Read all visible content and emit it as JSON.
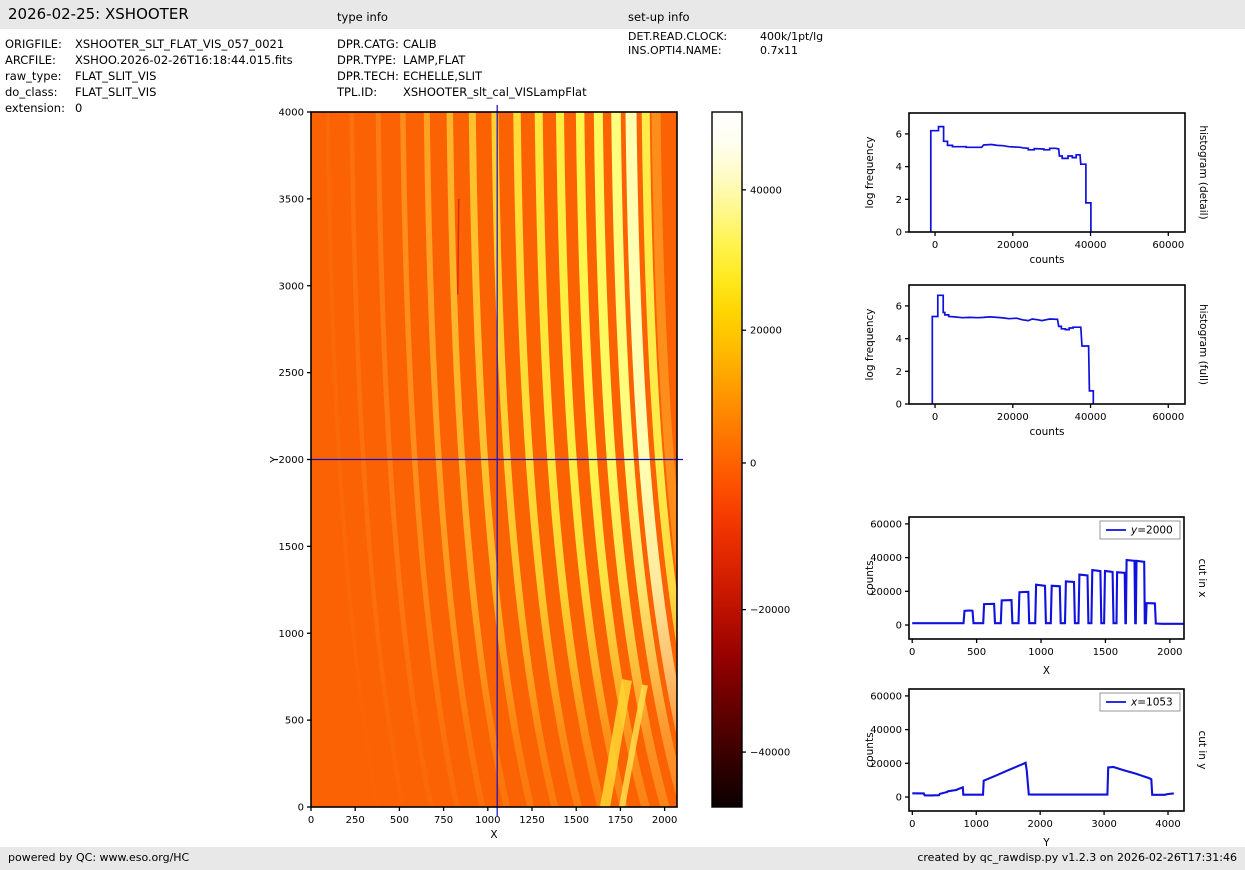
{
  "header": {
    "title": "2026-02-25: XSHOOTER",
    "type_info_label": "type info",
    "setup_info_label": "set-up info"
  },
  "file_info": [
    {
      "label": "ORIGFILE:",
      "value": "XSHOOTER_SLT_FLAT_VIS_057_0021"
    },
    {
      "label": "ARCFILE:",
      "value": "XSHOO.2026-02-26T16:18:44.015.fits"
    },
    {
      "label": "raw_type:",
      "value": "FLAT_SLIT_VIS"
    },
    {
      "label": "do_class:",
      "value": "FLAT_SLIT_VIS"
    },
    {
      "label": "extension:",
      "value": "0"
    }
  ],
  "type_info": [
    {
      "label": "DPR.CATG:",
      "value": "CALIB"
    },
    {
      "label": "DPR.TYPE:",
      "value": "LAMP,FLAT"
    },
    {
      "label": "DPR.TECH:",
      "value": "ECHELLE,SLIT"
    },
    {
      "label": "TPL.ID:",
      "value": "XSHOOTER_slt_cal_VISLampFlat"
    }
  ],
  "setup_info": [
    {
      "label": "DET.READ.CLOCK:",
      "value": "400k/1pt/lg"
    },
    {
      "label": "INS.OPTI4.NAME:",
      "value": "0.7x11"
    }
  ],
  "footer": {
    "left": "powered by QC: www.eso.org/HC",
    "right": "created by qc_rawdisp.py v1.2.3 on 2026-02-26T17:31:46"
  },
  "colors": {
    "line_blue": "#1111dd",
    "crosshair_blue": "#0d0dcc",
    "image_background": "#fb6203",
    "bar_background": "#e8e8e8"
  },
  "chart_data": [
    {
      "id": "main_image",
      "type": "heatmap",
      "colormap": "hot",
      "xlabel": "X",
      "ylabel": "Y",
      "xlim": [
        0,
        2070
      ],
      "ylim": [
        0,
        4000
      ],
      "xticks": [
        0,
        250,
        500,
        750,
        1000,
        1250,
        1500,
        1750,
        2000
      ],
      "yticks": [
        0,
        500,
        1000,
        1500,
        2000,
        2500,
        3000,
        3500,
        4000
      ],
      "crosshair": {
        "x": 1053,
        "y": 2000
      },
      "background_value_color": "#fb6203",
      "description": "raw echelle lamp-flat frame: curved spectral order stripes, brightness increasing to the right, orders fading toward the bottom",
      "order_stripes": [
        {
          "x": 95,
          "w": 4,
          "c": "#ff8222",
          "o": 0.2
        },
        {
          "x": 230,
          "w": 4.5,
          "c": "#ff8a24",
          "o": 0.38
        },
        {
          "x": 380,
          "w": 5,
          "c": "#ff9226",
          "o": 0.52
        },
        {
          "x": 520,
          "w": 5.5,
          "c": "#ff9c24",
          "o": 0.75
        },
        {
          "x": 655,
          "w": 6,
          "c": "#ffa726",
          "o": 0.92
        },
        {
          "x": 785,
          "w": 6.5,
          "c": "#ffb42a",
          "o": 1
        },
        {
          "x": 912,
          "w": 7,
          "c": "#ffc22e",
          "o": 1
        },
        {
          "x": 1040,
          "w": 7,
          "c": "#ffd032",
          "o": 1
        },
        {
          "x": 1165,
          "w": 7.5,
          "c": "#ffdc36",
          "o": 1
        },
        {
          "x": 1288,
          "w": 8,
          "c": "#ffe63a",
          "o": 1
        },
        {
          "x": 1408,
          "w": 8,
          "c": "#ffee42",
          "o": 1
        },
        {
          "x": 1522,
          "w": 8.5,
          "c": "#fff54c",
          "o": 1
        },
        {
          "x": 1625,
          "w": 9,
          "c": "#fff960",
          "o": 1
        },
        {
          "x": 1725,
          "w": 9.5,
          "c": "#fffd7e",
          "o": 1
        },
        {
          "x": 1810,
          "w": 11,
          "c": "#ffffb4",
          "o": 1
        },
        {
          "x": 1893,
          "w": 8,
          "c": "#ffec4a",
          "o": 1
        },
        {
          "x": 1952,
          "w": 9,
          "c": "#ff9a22",
          "o": 0.8
        }
      ],
      "defect": {
        "x": 830,
        "y1": 2950,
        "y2": 3500
      }
    },
    {
      "id": "colorbar",
      "type": "colorbar",
      "ticks": [
        {
          "label": "40000",
          "f": 0.112
        },
        {
          "label": "20000",
          "f": 0.314
        },
        {
          "label": "0",
          "f": 0.505
        },
        {
          "label": "−20000",
          "f": 0.716
        },
        {
          "label": "−40000",
          "f": 0.921
        }
      ],
      "gradient": [
        [
          0,
          "#ffffff"
        ],
        [
          0.04,
          "#fffef2"
        ],
        [
          0.09,
          "#fffcc8"
        ],
        [
          0.14,
          "#fff88e"
        ],
        [
          0.19,
          "#fff34f"
        ],
        [
          0.24,
          "#ffe91f"
        ],
        [
          0.29,
          "#ffd400"
        ],
        [
          0.34,
          "#ffbc00"
        ],
        [
          0.39,
          "#ffa000"
        ],
        [
          0.44,
          "#ff8400"
        ],
        [
          0.5,
          "#ff6400"
        ],
        [
          0.55,
          "#fc4a00"
        ],
        [
          0.6,
          "#ef3400"
        ],
        [
          0.66,
          "#d82200"
        ],
        [
          0.72,
          "#bb1000"
        ],
        [
          0.78,
          "#980200"
        ],
        [
          0.84,
          "#700000"
        ],
        [
          0.9,
          "#4a0000"
        ],
        [
          0.96,
          "#230000"
        ],
        [
          1,
          "#0c0000"
        ]
      ]
    },
    {
      "id": "hist_detail",
      "type": "line",
      "right_label": "histogram (detail)",
      "xlabel": "counts",
      "ylabel": "log frequency",
      "xlim": [
        -6700,
        64300
      ],
      "ylim": [
        0,
        7.28
      ],
      "xticks": [
        0,
        20000,
        40000,
        60000
      ],
      "yticks": [
        0,
        2,
        4,
        6
      ],
      "points": [
        [
          -1100,
          0
        ],
        [
          -1100,
          6.2
        ],
        [
          900,
          6.2
        ],
        [
          900,
          6.45
        ],
        [
          2200,
          6.45
        ],
        [
          2200,
          5.55
        ],
        [
          3200,
          5.55
        ],
        [
          3200,
          5.3
        ],
        [
          4500,
          5.3
        ],
        [
          4500,
          5.22
        ],
        [
          8000,
          5.22
        ],
        [
          8000,
          5.18
        ],
        [
          12000,
          5.18
        ],
        [
          12500,
          5.32
        ],
        [
          14500,
          5.35
        ],
        [
          16000,
          5.3
        ],
        [
          17500,
          5.28
        ],
        [
          19000,
          5.22
        ],
        [
          22000,
          5.18
        ],
        [
          22500,
          5.15
        ],
        [
          24000,
          5.12
        ],
        [
          24000,
          5.03
        ],
        [
          25500,
          5.03
        ],
        [
          25500,
          5.1
        ],
        [
          28000,
          5.08
        ],
        [
          28000,
          5.03
        ],
        [
          29500,
          5.03
        ],
        [
          29500,
          5.12
        ],
        [
          31000,
          5.12
        ],
        [
          31800,
          5.08
        ],
        [
          32000,
          4.65
        ],
        [
          32700,
          4.65
        ],
        [
          32700,
          4.5
        ],
        [
          34200,
          4.5
        ],
        [
          34200,
          4.65
        ],
        [
          35300,
          4.65
        ],
        [
          35300,
          4.55
        ],
        [
          36300,
          4.55
        ],
        [
          36300,
          4.72
        ],
        [
          37300,
          4.72
        ],
        [
          37500,
          4.15
        ],
        [
          38800,
          4.15
        ],
        [
          38800,
          1.78
        ],
        [
          40100,
          1.78
        ],
        [
          40100,
          0
        ]
      ]
    },
    {
      "id": "hist_full",
      "type": "line",
      "right_label": "histogram (full)",
      "xlabel": "counts",
      "ylabel": "log frequency",
      "xlim": [
        -6700,
        64300
      ],
      "ylim": [
        0,
        7.28
      ],
      "xticks": [
        0,
        20000,
        40000,
        60000
      ],
      "yticks": [
        0,
        2,
        4,
        6
      ],
      "points": [
        [
          -700,
          0
        ],
        [
          -700,
          5.35
        ],
        [
          700,
          5.35
        ],
        [
          700,
          6.65
        ],
        [
          2100,
          6.65
        ],
        [
          2100,
          5.6
        ],
        [
          2500,
          5.6
        ],
        [
          2500,
          5.45
        ],
        [
          3500,
          5.45
        ],
        [
          3500,
          5.35
        ],
        [
          5000,
          5.33
        ],
        [
          7000,
          5.28
        ],
        [
          9000,
          5.3
        ],
        [
          11000,
          5.28
        ],
        [
          12500,
          5.3
        ],
        [
          14000,
          5.33
        ],
        [
          16000,
          5.3
        ],
        [
          17500,
          5.27
        ],
        [
          19000,
          5.22
        ],
        [
          21000,
          5.25
        ],
        [
          22500,
          5.15
        ],
        [
          24000,
          5.1
        ],
        [
          25000,
          5.2
        ],
        [
          26500,
          5.15
        ],
        [
          27500,
          5.1
        ],
        [
          28500,
          5.15
        ],
        [
          29500,
          5.2
        ],
        [
          31500,
          5.18
        ],
        [
          31800,
          4.75
        ],
        [
          32500,
          4.75
        ],
        [
          32500,
          4.6
        ],
        [
          33500,
          4.6
        ],
        [
          33500,
          4.55
        ],
        [
          34500,
          4.55
        ],
        [
          34500,
          4.65
        ],
        [
          35500,
          4.65
        ],
        [
          35500,
          4.7
        ],
        [
          37500,
          4.7
        ],
        [
          37800,
          3.55
        ],
        [
          39500,
          3.55
        ],
        [
          39700,
          0.8
        ],
        [
          40700,
          0.8
        ],
        [
          40700,
          0
        ]
      ]
    },
    {
      "id": "cut_x",
      "type": "line",
      "right_label": "cut in x",
      "legend": "y=2000",
      "xlabel": "X",
      "ylabel": "counts",
      "xlim": [
        -25,
        2110
      ],
      "ylim": [
        -8300,
        64100
      ],
      "xticks": [
        0,
        500,
        1000,
        1500,
        2000
      ],
      "yticks": [
        0,
        20000,
        40000,
        60000
      ],
      "points": [
        [
          0,
          1100
        ],
        [
          398,
          1100
        ],
        [
          406,
          8400
        ],
        [
          440,
          8600
        ],
        [
          468,
          8500
        ],
        [
          476,
          1100
        ],
        [
          551,
          1100
        ],
        [
          558,
          12400
        ],
        [
          636,
          12600
        ],
        [
          643,
          1100
        ],
        [
          688,
          1100
        ],
        [
          695,
          14600
        ],
        [
          771,
          14800
        ],
        [
          778,
          1100
        ],
        [
          825,
          1100
        ],
        [
          832,
          19500
        ],
        [
          901,
          19700
        ],
        [
          908,
          1100
        ],
        [
          955,
          1100
        ],
        [
          962,
          23900
        ],
        [
          1031,
          23300
        ],
        [
          1038,
          1100
        ],
        [
          1076,
          1100
        ],
        [
          1083,
          23300
        ],
        [
          1146,
          23000
        ],
        [
          1153,
          1100
        ],
        [
          1186,
          1100
        ],
        [
          1193,
          25900
        ],
        [
          1256,
          25500
        ],
        [
          1263,
          1100
        ],
        [
          1291,
          1100
        ],
        [
          1298,
          29900
        ],
        [
          1361,
          29400
        ],
        [
          1368,
          1100
        ],
        [
          1391,
          1100
        ],
        [
          1398,
          32600
        ],
        [
          1461,
          32000
        ],
        [
          1468,
          1100
        ],
        [
          1490,
          1100
        ],
        [
          1497,
          32100
        ],
        [
          1556,
          31500
        ],
        [
          1563,
          1100
        ],
        [
          1586,
          1100
        ],
        [
          1591,
          31300
        ],
        [
          1650,
          31000
        ],
        [
          1655,
          1100
        ],
        [
          1659,
          1100
        ],
        [
          1664,
          38600
        ],
        [
          1726,
          38100
        ],
        [
          1731,
          1100
        ],
        [
          1736,
          1100
        ],
        [
          1741,
          38100
        ],
        [
          1801,
          37500
        ],
        [
          1806,
          1100
        ],
        [
          1814,
          1100
        ],
        [
          1820,
          13000
        ],
        [
          1884,
          12800
        ],
        [
          1891,
          900
        ],
        [
          1940,
          700
        ],
        [
          2110,
          700
        ]
      ]
    },
    {
      "id": "cut_y",
      "type": "line",
      "right_label": "cut in y",
      "legend": "x=1053",
      "xlabel": "Y",
      "ylabel": "counts",
      "xlim": [
        -52,
        4250
      ],
      "ylim": [
        -8300,
        64100
      ],
      "xticks": [
        0,
        1000,
        2000,
        3000,
        4000
      ],
      "yticks": [
        0,
        20000,
        40000,
        60000
      ],
      "points": [
        [
          0,
          2200
        ],
        [
          180,
          2150
        ],
        [
          192,
          1000
        ],
        [
          290,
          950
        ],
        [
          418,
          1050
        ],
        [
          430,
          1850
        ],
        [
          545,
          2950
        ],
        [
          552,
          3350
        ],
        [
          696,
          4250
        ],
        [
          703,
          4500
        ],
        [
          790,
          5700
        ],
        [
          798,
          1350
        ],
        [
          1105,
          1350
        ],
        [
          1116,
          9700
        ],
        [
          1300,
          12600
        ],
        [
          1500,
          15900
        ],
        [
          1700,
          19100
        ],
        [
          1772,
          20300
        ],
        [
          1790,
          16000
        ],
        [
          1822,
          1500
        ],
        [
          1900,
          1450
        ],
        [
          3052,
          1450
        ],
        [
          3064,
          17500
        ],
        [
          3145,
          17800
        ],
        [
          3300,
          16000
        ],
        [
          3500,
          13800
        ],
        [
          3698,
          11300
        ],
        [
          3738,
          10600
        ],
        [
          3752,
          1300
        ],
        [
          3952,
          1300
        ],
        [
          3988,
          1700
        ],
        [
          4090,
          2150
        ]
      ]
    }
  ]
}
